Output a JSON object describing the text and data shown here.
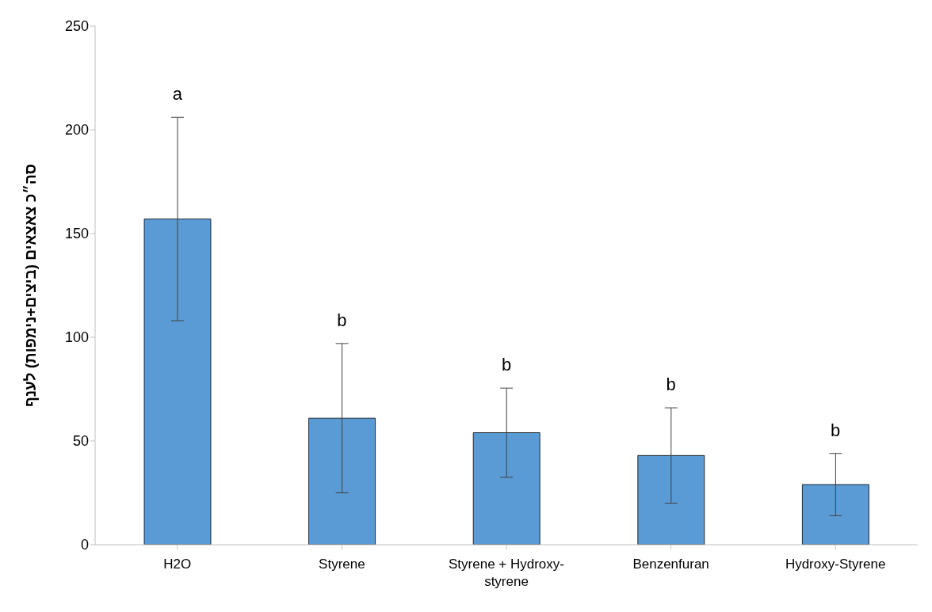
{
  "chart_data": {
    "type": "bar",
    "ylabel": "סה״כ צאצאים (ביצים+נימפות) לענף",
    "categories": [
      "H2O",
      "Styrene",
      "Styrene + Hydroxy-styrene",
      "Benzenfuran",
      "Hydroxy-Styrene"
    ],
    "values": [
      157,
      61,
      54,
      43,
      29
    ],
    "errors": [
      49,
      36,
      21.5,
      23,
      15
    ],
    "color": "#5b9bd5",
    "ylim": [
      0,
      250
    ],
    "yticks": [
      0,
      50,
      100,
      150,
      200,
      250
    ],
    "grid": false,
    "legend": false,
    "annotations": [
      "a",
      "b",
      "b",
      "b",
      "b"
    ]
  }
}
